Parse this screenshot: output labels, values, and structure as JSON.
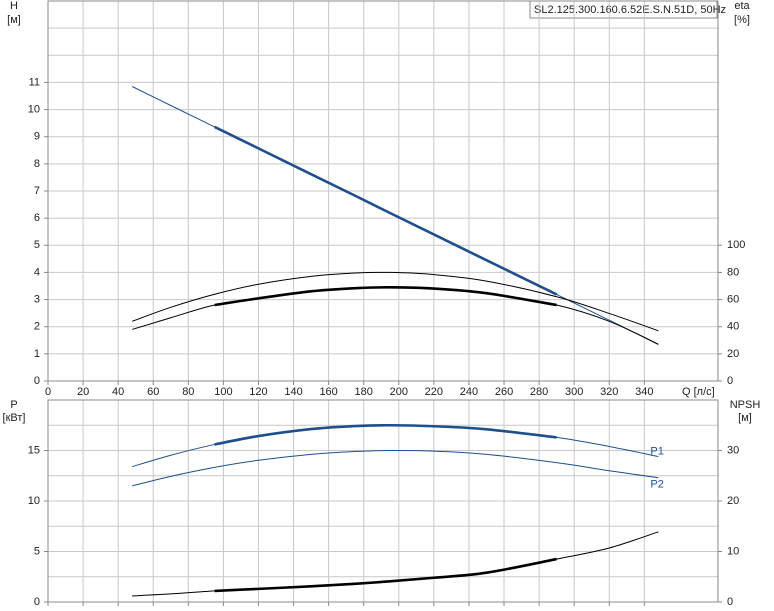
{
  "chart_data": [
    {
      "type": "line",
      "title": "SL2.125.300.160.6.52E.S.N.51D, 50Hz",
      "y_label": "H",
      "y_unit": "[м]",
      "y2_label": "eta",
      "y2_unit": "[%]",
      "x_label": "Q [л/с]",
      "x": [
        48,
        70,
        95,
        120,
        150,
        175,
        195,
        220,
        250,
        290,
        320,
        348
      ],
      "xlim": [
        0,
        382
      ],
      "xticks": [
        0,
        20,
        40,
        60,
        80,
        100,
        120,
        140,
        160,
        180,
        200,
        220,
        240,
        260,
        280,
        300,
        320,
        340
      ],
      "ylim": [
        0,
        14
      ],
      "yticks": [
        0,
        1,
        2,
        3,
        4,
        5,
        6,
        7,
        8,
        9,
        10,
        11,
        {
          "value": 12,
          "label": null
        },
        {
          "value": 13,
          "label": null
        }
      ],
      "y2lim": [
        0,
        280
      ],
      "y2ticks": [
        0,
        20,
        40,
        60,
        80,
        100
      ],
      "grid": true,
      "bold_range": [
        95,
        290
      ],
      "series": [
        {
          "color": "#1f4e8c",
          "bold": true,
          "values": [
            10.85,
            10.15,
            9.36,
            8.57,
            7.62,
            6.83,
            6.19,
            5.4,
            4.45,
            3.19,
            2.24,
            1.35
          ]
        },
        {
          "color": "#000000",
          "bold": false,
          "axis": "y2",
          "values": [
            44,
            54.3,
            63.9,
            71.3,
            77.1,
            79.6,
            80,
            78.4,
            73.6,
            62.1,
            49.8,
            37
          ]
        },
        {
          "color": "#000000",
          "bold": true,
          "axis": "y2",
          "values": [
            38,
            46.6,
            56,
            60.9,
            66.1,
            68.4,
            69,
            68.1,
            64.7,
            56,
            44,
            27
          ]
        }
      ]
    },
    {
      "type": "line",
      "y_label": "P",
      "y_unit": "[кВт]",
      "y2_label": "NPSH",
      "y2_unit": "[м]",
      "x": [
        48,
        70,
        95,
        120,
        150,
        175,
        195,
        220,
        250,
        290,
        320,
        348
      ],
      "xlim": [
        0,
        382
      ],
      "xticks": [
        {
          "value": 0,
          "label": null
        },
        {
          "value": 20,
          "label": null
        },
        {
          "value": 40,
          "label": null
        },
        {
          "value": 60,
          "label": null
        },
        {
          "value": 80,
          "label": null
        },
        {
          "value": 100,
          "label": null
        },
        {
          "value": 120,
          "label": null
        },
        {
          "value": 140,
          "label": null
        },
        {
          "value": 160,
          "label": null
        },
        {
          "value": 180,
          "label": null
        },
        {
          "value": 200,
          "label": null
        },
        {
          "value": 220,
          "label": null
        },
        {
          "value": 240,
          "label": null
        },
        {
          "value": 260,
          "label": null
        },
        {
          "value": 280,
          "label": null
        },
        {
          "value": 300,
          "label": null
        },
        {
          "value": 320,
          "label": null
        },
        {
          "value": 340,
          "label": null
        }
      ],
      "ylim": [
        0,
        20
      ],
      "yticks": [
        0,
        {
          "value": 2.5,
          "label": null
        },
        5,
        {
          "value": 7.5,
          "label": null
        },
        10,
        {
          "value": 12.5,
          "label": null
        },
        15,
        {
          "value": 17.5,
          "label": null
        }
      ],
      "y2lim": [
        0,
        40
      ],
      "y2ticks": [
        0,
        10,
        20,
        30
      ],
      "grid": true,
      "bold_range": [
        95,
        290
      ],
      "series": [
        {
          "name": "P1",
          "color": "#1f4e8c",
          "bold": true,
          "values": [
            13.4,
            14.53,
            15.6,
            16.43,
            17.12,
            17.42,
            17.5,
            17.4,
            17.1,
            16.3,
            15.4,
            14.4
          ]
        },
        {
          "name": "P2",
          "color": "#1f4e8c",
          "bold": false,
          "values": [
            11.5,
            12.44,
            13.33,
            14.03,
            14.62,
            14.9,
            15,
            14.94,
            14.62,
            13.8,
            13,
            12.3
          ]
        },
        {
          "color": "#000000",
          "bold": true,
          "axis": "y2",
          "values": [
            1.2,
            1.6,
            2.2,
            2.6,
            3.1,
            3.6,
            4.1,
            4.8,
            5.8,
            8.5,
            10.7,
            13.9
          ]
        }
      ]
    }
  ]
}
